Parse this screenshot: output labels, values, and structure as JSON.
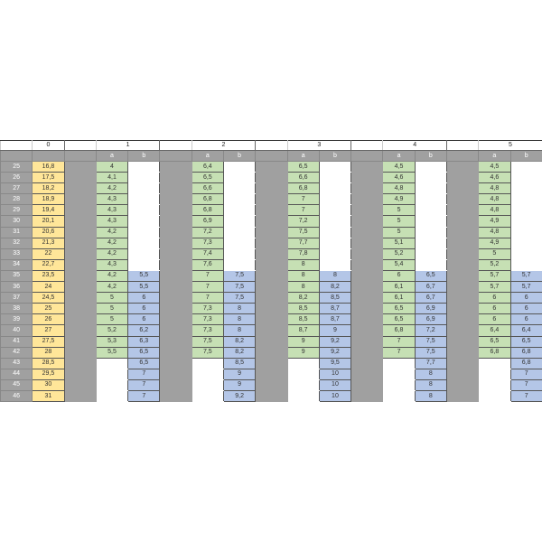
{
  "colors": {
    "grey": "#a0a0a0",
    "yellow": "#ffe699",
    "green": "#c6e0b4",
    "blue": "#b4c6e7"
  },
  "header": {
    "col0": "0",
    "groups": [
      "1",
      "2",
      "3",
      "4",
      "5"
    ]
  },
  "subheader": {
    "a": "a",
    "b": "b"
  },
  "rows": [
    "25",
    "26",
    "27",
    "28",
    "29",
    "30",
    "31",
    "32",
    "33",
    "34",
    "35",
    "36",
    "37",
    "38",
    "39",
    "40",
    "41",
    "42",
    "43",
    "44",
    "45",
    "46"
  ],
  "col0": [
    "16,8",
    "17,5",
    "18,2",
    "18,9",
    "19,4",
    "20,1",
    "20,6",
    "21,3",
    "22",
    "22,7",
    "23,5",
    "24",
    "24,5",
    "25",
    "26",
    "27",
    "27,5",
    "28",
    "28,5",
    "29,5",
    "30",
    "31"
  ],
  "groups": [
    {
      "a": [
        "4",
        "4,1",
        "4,2",
        "4,3",
        "4,3",
        "4,3",
        "4,2",
        "4,2",
        "4,2",
        "4,3",
        "4,2",
        "4,2",
        "5",
        "5",
        "5",
        "5,2",
        "5,3",
        "5,5",
        null,
        null,
        null,
        null
      ],
      "b": [
        null,
        null,
        null,
        null,
        null,
        null,
        null,
        null,
        null,
        null,
        "5,5",
        "5,5",
        "6",
        "6",
        "6",
        "6,2",
        "6,3",
        "6,5",
        "6,5",
        "7",
        "7",
        "7"
      ]
    },
    {
      "a": [
        "6,4",
        "6,5",
        "6,6",
        "6,8",
        "6,8",
        "6,9",
        "7,2",
        "7,3",
        "7,4",
        "7,6",
        "7",
        "7",
        "7",
        "7,3",
        "7,3",
        "7,3",
        "7,5",
        "7,5",
        null,
        null,
        null,
        null
      ],
      "b": [
        null,
        null,
        null,
        null,
        null,
        null,
        null,
        null,
        null,
        null,
        "7,5",
        "7,5",
        "7,5",
        "8",
        "8",
        "8",
        "8,2",
        "8,2",
        "8,5",
        "9",
        "9",
        "9,2"
      ]
    },
    {
      "a": [
        "6,5",
        "6,6",
        "6,8",
        "7",
        "7",
        "7,2",
        "7,5",
        "7,7",
        "7,8",
        "8",
        "8",
        "8",
        "8,2",
        "8,5",
        "8,5",
        "8,7",
        "9",
        "9",
        null,
        null,
        null,
        null
      ],
      "b": [
        null,
        null,
        null,
        null,
        null,
        null,
        null,
        null,
        null,
        null,
        "8",
        "8,2",
        "8,5",
        "8,7",
        "8,7",
        "9",
        "9,2",
        "9,2",
        "9,5",
        "10",
        "10",
        "10"
      ]
    },
    {
      "a": [
        "4,5",
        "4,6",
        "4,8",
        "4,9",
        "5",
        "5",
        "5",
        "5,1",
        "5,2",
        "5,4",
        "6",
        "6,1",
        "6,1",
        "6,5",
        "6,5",
        "6,8",
        "7",
        "7",
        null,
        null,
        null,
        null
      ],
      "b": [
        null,
        null,
        null,
        null,
        null,
        null,
        null,
        null,
        null,
        null,
        "6,5",
        "6,7",
        "6,7",
        "6,9",
        "6,9",
        "7,2",
        "7,5",
        "7,5",
        "7,7",
        "8",
        "8",
        "8"
      ]
    },
    {
      "a": [
        "4,5",
        "4,6",
        "4,8",
        "4,8",
        "4,8",
        "4,9",
        "4,8",
        "4,9",
        "5",
        "5,2",
        "5,7",
        "5,7",
        "6",
        "6",
        "6",
        "6,4",
        "6,5",
        "6,8",
        null,
        null,
        null,
        null
      ],
      "b": [
        null,
        null,
        null,
        null,
        null,
        null,
        null,
        null,
        null,
        null,
        "5,7",
        "5,7",
        "6",
        "6",
        "6",
        "6,4",
        "6,5",
        "6,8",
        "6,8",
        "7",
        "7",
        "7"
      ]
    }
  ]
}
